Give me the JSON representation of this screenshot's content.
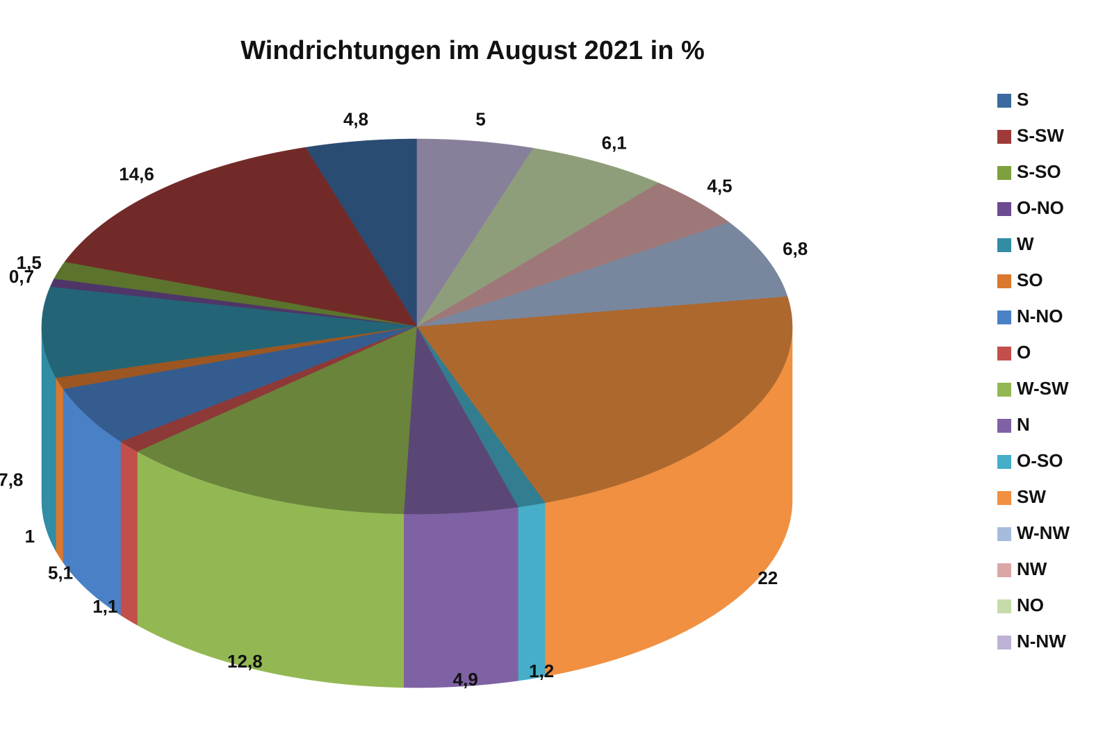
{
  "chart_data": {
    "type": "pie",
    "title": "Windrichtungen im August 2021 in %",
    "categories": [
      "S",
      "S-SW",
      "S-SO",
      "O-NO",
      "W",
      "SO",
      "N-NO",
      "O",
      "W-SW",
      "N",
      "O-SO",
      "SW",
      "W-NW",
      "NW",
      "NO",
      "N-NW"
    ],
    "values": [
      4.8,
      14.6,
      1.5,
      0.7,
      7.8,
      1,
      5.1,
      1.1,
      12.8,
      4.9,
      1.2,
      22,
      6.8,
      4.5,
      6.1,
      5
    ],
    "value_labels": [
      "4,8",
      "14,6",
      "1,5",
      "0,7",
      "7,8",
      "1",
      "5,1",
      "1,1",
      "12,8",
      "4,9",
      "1,2",
      "22",
      "6,8",
      "4,5",
      "6,1",
      "5"
    ],
    "colors": [
      "#3a6aa0",
      "#9e3b38",
      "#7fa03e",
      "#6c4b91",
      "#318ca4",
      "#d9782e",
      "#4a80c6",
      "#c24f4c",
      "#93b853",
      "#7f62a4",
      "#46aec8",
      "#f09040",
      "#a6bcdc",
      "#dba6a6",
      "#c6dbaa",
      "#bdb2d6"
    ],
    "direction": "counterclockwise",
    "legend": "right"
  }
}
